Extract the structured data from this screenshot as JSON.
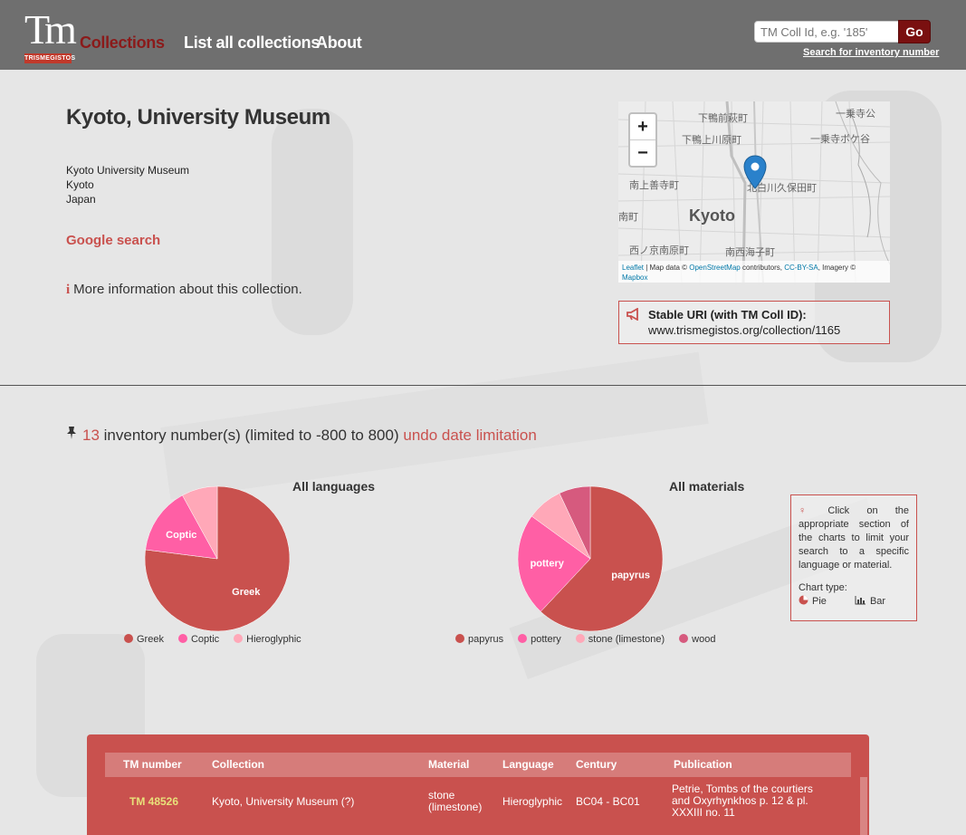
{
  "header": {
    "logo_text": "Tm",
    "logo_ribbon": "TRISMEGISTOS",
    "nav": [
      "Collections",
      "List all collections",
      "About"
    ],
    "search_placeholder": "TM Coll Id, e.g. '185'",
    "go_label": "Go",
    "inventory_link": "Search for inventory number"
  },
  "collection": {
    "title": "Kyoto, University Museum",
    "address": [
      "Kyoto University Museum",
      "Kyoto",
      "Japan"
    ],
    "google_link": "Google search",
    "more_info": "More information about this collection."
  },
  "map": {
    "labels": [
      "下鴨前萩町",
      "一乗寺公",
      "下鴨上川原町",
      "一乗寺ボケ谷",
      "南上善寺町",
      "北白川久保田町",
      "南町",
      "Kyoto",
      "西ノ京南原町",
      "南西海子町"
    ],
    "zoom_in": "+",
    "zoom_out": "−",
    "attribution": {
      "leaflet": "Leaflet",
      "map_data": " | Map data © ",
      "osm": "OpenStreetMap",
      "contrib": " contributors, ",
      "license": "CC-BY-SA",
      "imagery": ", Imagery ©",
      "mapbox": "Mapbox"
    }
  },
  "stable_uri": {
    "label": "Stable URI (with TM Coll ID):",
    "url": "www.trismegistos.org/collection/1165"
  },
  "inventory": {
    "count": "13",
    "text": "inventory number(s) (limited to -800 to 800)",
    "undo": "undo date limitation"
  },
  "chart_data": [
    {
      "type": "pie",
      "title": "All languages",
      "series": [
        {
          "name": "Greek",
          "value": 77,
          "color": "#c9514e"
        },
        {
          "name": "Coptic",
          "value": 15,
          "color": "#ff5fa5"
        },
        {
          "name": "Hieroglyphic",
          "value": 8,
          "color": "#ffa8b8"
        }
      ],
      "slice_labels": [
        "Greek",
        "Coptic"
      ]
    },
    {
      "type": "pie",
      "title": "All materials",
      "series": [
        {
          "name": "papyrus",
          "value": 62,
          "color": "#c9514e"
        },
        {
          "name": "pottery",
          "value": 23,
          "color": "#ff5fa5"
        },
        {
          "name": "stone (limestone)",
          "value": 8,
          "color": "#ffa8b8"
        },
        {
          "name": "wood",
          "value": 7,
          "color": "#d65a7e"
        }
      ],
      "slice_labels": [
        "papyrus",
        "pottery"
      ]
    }
  ],
  "tip": {
    "text": "Click on the appropriate section of the charts to limit your search to a specific language or material.",
    "chart_type_label": "Chart type:",
    "pie_label": "Pie",
    "bar_label": "Bar"
  },
  "table": {
    "headers": [
      "TM number",
      "Collection",
      "Material",
      "Language",
      "Century",
      "Publication"
    ],
    "rows": [
      {
        "tm": "TM 48526",
        "collection": "Kyoto, University Museum (?)",
        "material": "stone (limestone)",
        "language": "Hieroglyphic",
        "century": "BC04 - BC01",
        "publication": "Petrie, Tombs of the courtiers and Oxyrhynkhos p. 12 & pl. XXXIII no. 11"
      }
    ]
  }
}
